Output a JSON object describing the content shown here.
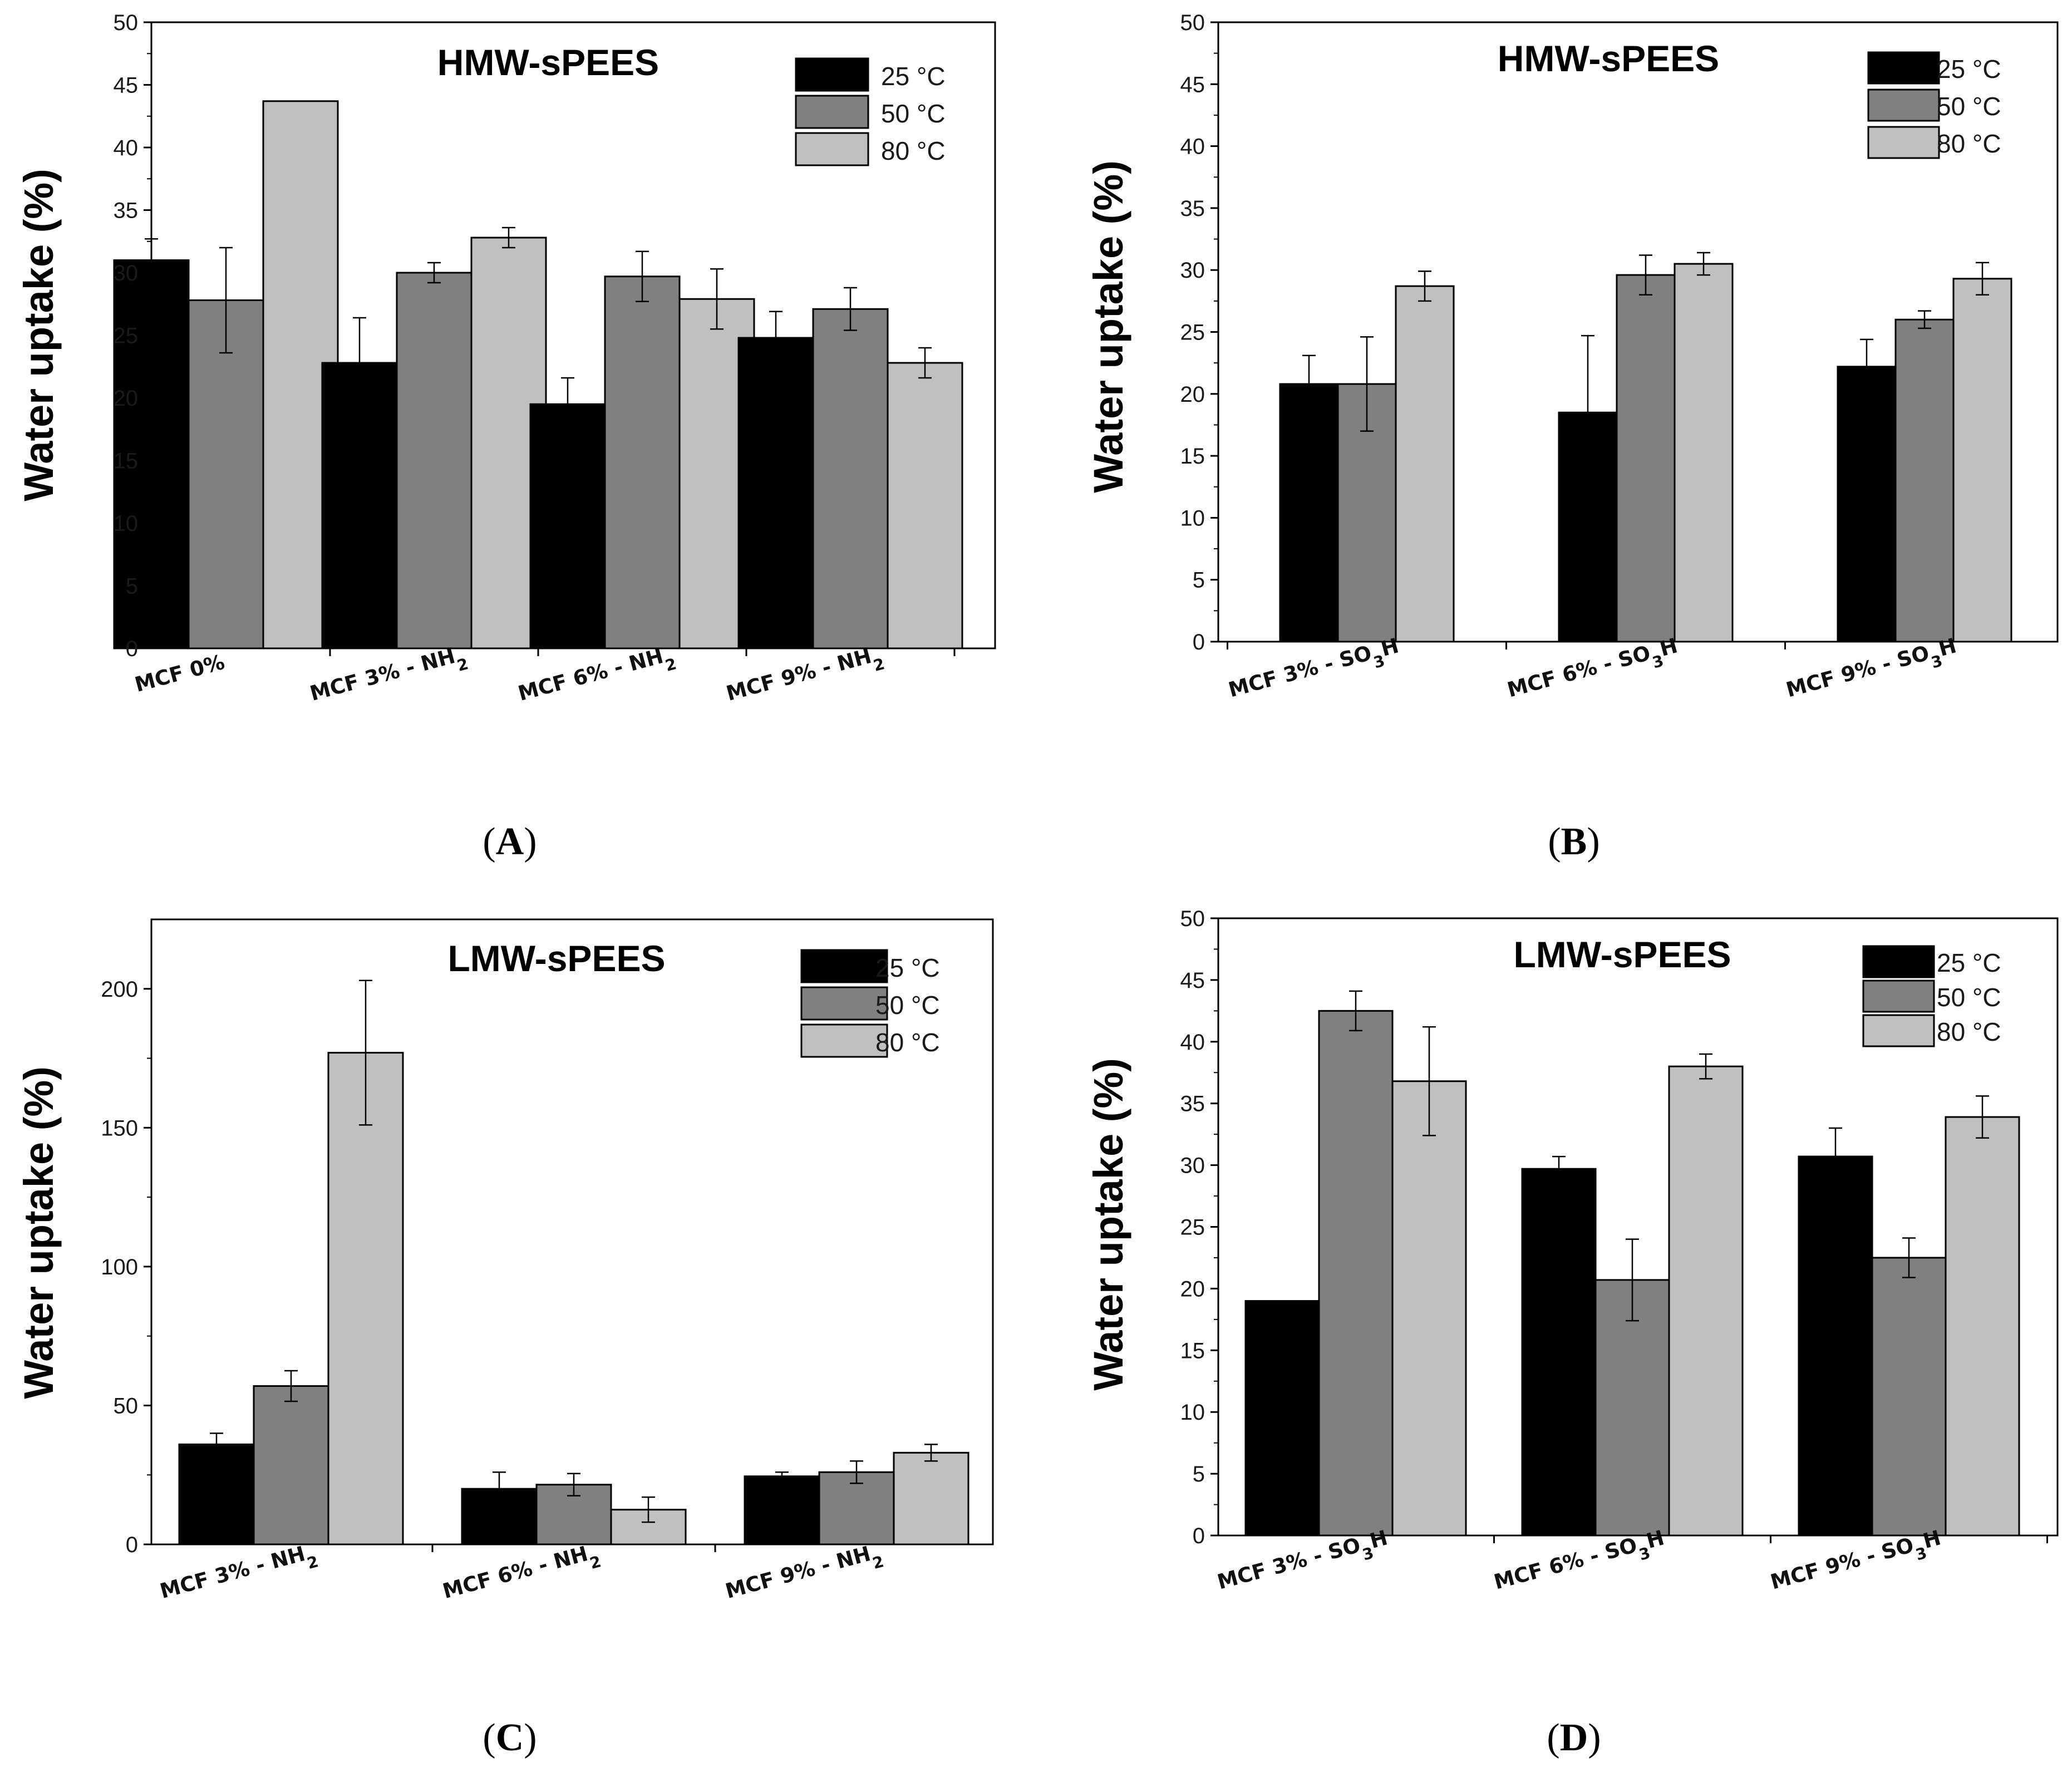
{
  "chart_data": [
    {
      "type": "bar",
      "panel_label": "(A)",
      "title": "HMW-sPEES",
      "ylabel": "Water uptake (%)",
      "ylim": [
        0,
        50
      ],
      "yticks": [
        0,
        5,
        10,
        15,
        20,
        25,
        30,
        35,
        40,
        45,
        50
      ],
      "categories": [
        {
          "main": "MCF 0%",
          "sub": ""
        },
        {
          "main": "MCF 3% - NH",
          "sub": "2"
        },
        {
          "main": "MCF 6% - NH",
          "sub": "2"
        },
        {
          "main": "MCF 9% - NH",
          "sub": "2"
        }
      ],
      "legend_position": "top-right",
      "series": [
        {
          "name": "25 °C",
          "color": "#000000",
          "values": [
            31.0,
            22.8,
            19.5,
            24.8
          ],
          "errors": [
            1.7,
            3.6,
            2.1,
            2.1
          ]
        },
        {
          "name": "50 °C",
          "color": "#808080",
          "values": [
            27.8,
            30.0,
            29.7,
            27.1
          ],
          "errors": [
            4.2,
            0.8,
            2.0,
            1.7
          ]
        },
        {
          "name": "80 °C",
          "color": "#c0c0c0",
          "values": [
            43.7,
            32.8,
            27.9,
            22.8
          ],
          "errors": [
            0,
            0.8,
            2.4,
            1.2
          ]
        }
      ]
    },
    {
      "type": "bar",
      "panel_label": "(B)",
      "title": "HMW-sPEES",
      "ylabel": "Water uptake (%)",
      "ylim": [
        0,
        50
      ],
      "yticks": [
        0,
        5,
        10,
        15,
        20,
        25,
        30,
        35,
        40,
        45,
        50
      ],
      "categories": [
        {
          "main": "MCF 3% - SO",
          "sub": "3",
          "post": "H"
        },
        {
          "main": "MCF 6% - SO",
          "sub": "3",
          "post": "H"
        },
        {
          "main": "MCF 9% - SO",
          "sub": "3",
          "post": "H"
        }
      ],
      "legend_position": "top-right",
      "series": [
        {
          "name": "25 °C",
          "color": "#000000",
          "values": [
            20.8,
            18.5,
            22.2
          ],
          "errors": [
            2.3,
            6.2,
            2.2
          ]
        },
        {
          "name": "50 °C",
          "color": "#808080",
          "values": [
            20.8,
            29.6,
            26.0
          ],
          "errors": [
            3.8,
            1.6,
            0.7
          ]
        },
        {
          "name": "80 °C",
          "color": "#c0c0c0",
          "values": [
            28.7,
            30.5,
            29.3
          ],
          "errors": [
            1.2,
            0.9,
            1.3
          ]
        }
      ]
    },
    {
      "type": "bar",
      "panel_label": "(C)",
      "title": "LMW-sPEES",
      "ylabel": "Water uptake (%)",
      "ylim": [
        0,
        225
      ],
      "yticks": [
        0,
        50,
        100,
        150,
        200
      ],
      "categories": [
        {
          "main": "MCF 3% - NH",
          "sub": "2"
        },
        {
          "main": "MCF 6% - NH",
          "sub": "2"
        },
        {
          "main": "MCF 9% - NH",
          "sub": "2"
        }
      ],
      "legend_position": "top-right",
      "series": [
        {
          "name": "25 °C",
          "color": "#000000",
          "values": [
            36.0,
            20.0,
            24.5
          ],
          "errors": [
            4.0,
            6.0,
            1.5
          ]
        },
        {
          "name": "50 °C",
          "color": "#808080",
          "values": [
            57.0,
            21.5,
            26.0
          ],
          "errors": [
            5.5,
            4.0,
            4.0
          ]
        },
        {
          "name": "80 °C",
          "color": "#c0c0c0",
          "values": [
            177.0,
            12.5,
            33.0
          ],
          "errors": [
            26.0,
            4.5,
            3.0
          ]
        }
      ]
    },
    {
      "type": "bar",
      "panel_label": "(D)",
      "title": "LMW-sPEES",
      "ylabel": "Water uptake (%)",
      "ylim": [
        0,
        50
      ],
      "yticks": [
        0,
        5,
        10,
        15,
        20,
        25,
        30,
        35,
        40,
        45,
        50
      ],
      "categories": [
        {
          "main": "MCF 3% - SO",
          "sub": "3",
          "post": "H"
        },
        {
          "main": "MCF 6% - SO",
          "sub": "3",
          "post": "H"
        },
        {
          "main": "MCF 9% - SO",
          "sub": "3",
          "post": "H"
        }
      ],
      "legend_position": "top-right",
      "series": [
        {
          "name": "25 °C",
          "color": "#000000",
          "values": [
            19.0,
            29.7,
            30.7
          ],
          "errors": [
            0,
            1.0,
            2.3
          ]
        },
        {
          "name": "50 °C",
          "color": "#808080",
          "values": [
            42.5,
            20.7,
            22.5
          ],
          "errors": [
            1.6,
            3.3,
            1.6
          ]
        },
        {
          "name": "80 °C",
          "color": "#c0c0c0",
          "values": [
            36.8,
            38.0,
            33.9
          ],
          "errors": [
            4.4,
            1.0,
            1.7
          ]
        }
      ]
    }
  ]
}
